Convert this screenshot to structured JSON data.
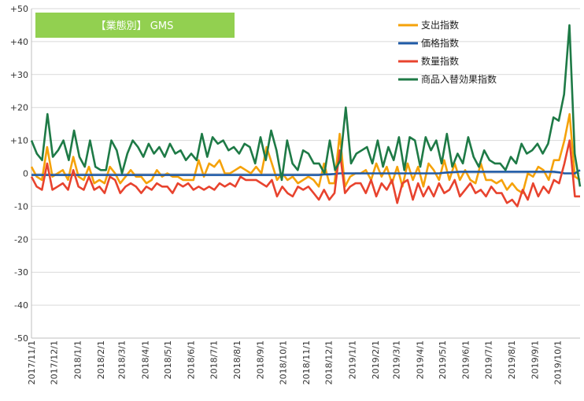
{
  "chart_data": {
    "type": "line",
    "title": "【業態別】 GMS",
    "xlabel": "",
    "ylabel": "",
    "ylim": [
      -50,
      50
    ],
    "yticks": [
      50,
      40,
      30,
      20,
      10,
      0,
      -10,
      -20,
      -30,
      -40,
      -50
    ],
    "ytick_labels": [
      "+50",
      "+40",
      "+30",
      "+20",
      "+10",
      "0",
      "-10",
      "-20",
      "-30",
      "-40",
      "-50"
    ],
    "grid": true,
    "legend_position": "top-right",
    "title_box_color": "#92d050",
    "x_start": "2017/11/1",
    "x_end": "2019/10/31",
    "x_tick_labels": [
      "2017/11/1",
      "2017/12/1",
      "2018/1/1",
      "2018/2/1",
      "2018/3/1",
      "2018/4/1",
      "2018/5/1",
      "2018/6/1",
      "2018/7/1",
      "2018/8/1",
      "2018/9/1",
      "2018/10/1",
      "2018/11/1",
      "2018/12/1",
      "2019/1/1",
      "2019/2/1",
      "2019/3/1",
      "2019/4/1",
      "2019/5/1",
      "2019/6/1",
      "2019/7/1",
      "2019/8/1",
      "2019/9/1",
      "2019/10/1"
    ],
    "series": [
      {
        "name": "支出指数",
        "color": "#f5a20a",
        "values": [
          2,
          -1,
          -2,
          8,
          -1,
          0,
          1,
          -2,
          5,
          -1,
          -2,
          2,
          -3,
          -2,
          -3,
          2,
          0,
          -3,
          -1,
          1,
          -1,
          -1,
          -3,
          -2,
          1,
          -1,
          0,
          -1,
          -1,
          -2,
          -2,
          -2,
          4,
          -1,
          3,
          2,
          4,
          0,
          0,
          1,
          2,
          1,
          0,
          2,
          0,
          8,
          3,
          -2,
          0,
          -2,
          -1,
          -3,
          -2,
          -1,
          -2,
          -4,
          3,
          -3,
          -3,
          12,
          -4,
          -1,
          0,
          0,
          1,
          -2,
          3,
          -1,
          2,
          -3,
          2,
          -4,
          3,
          -2,
          2,
          -4,
          3,
          1,
          -2,
          4,
          -2,
          3,
          -2,
          1,
          -2,
          -3,
          3,
          -2,
          -2,
          -3,
          -2,
          -5,
          -3,
          -5,
          -6,
          0,
          -1,
          2,
          1,
          -2,
          4,
          4,
          10,
          18,
          -1,
          -2
        ]
      },
      {
        "name": "価格指数",
        "color": "#1f5aa6",
        "values": [
          -0.5,
          -0.5,
          -0.5,
          -0.5,
          -0.5,
          -0.5,
          -0.5,
          -0.5,
          -0.5,
          -0.5,
          -0.5,
          -0.5,
          -0.5,
          -0.5,
          -0.5,
          -0.5,
          -0.5,
          -0.5,
          -0.5,
          -0.5,
          -0.5,
          -0.5,
          -0.5,
          -0.5,
          -0.5,
          -0.5,
          -0.5,
          -0.5,
          -0.5,
          -0.5,
          -0.5,
          -0.5,
          -0.5,
          -0.5,
          -0.5,
          -0.5,
          -0.5,
          -0.5,
          -0.5,
          -0.5,
          -0.5,
          -0.5,
          -0.5,
          -0.5,
          -0.5,
          -0.5,
          -0.5,
          -0.5,
          -0.5,
          -0.5,
          -0.5,
          -0.5,
          -0.5,
          -0.5,
          -0.5,
          -0.5,
          -0.3,
          -0.3,
          -0.2,
          0,
          0,
          0,
          0,
          0,
          0,
          0,
          0,
          0,
          0,
          0,
          0,
          0,
          0,
          0,
          0,
          0,
          0,
          0,
          0,
          0.2,
          0.3,
          0.4,
          0.5,
          0.5,
          0.5,
          0.5,
          0.5,
          0.5,
          0.5,
          0.5,
          0.5,
          0.5,
          0.5,
          0.5,
          0.5,
          0.5,
          0.5,
          0.5,
          0.5,
          0.5,
          0.5,
          0.3,
          0,
          0,
          0,
          1
        ]
      },
      {
        "name": "数量指数",
        "color": "#e8432e",
        "values": [
          -1,
          -4,
          -5,
          3,
          -5,
          -4,
          -3,
          -5,
          1,
          -4,
          -5,
          -1,
          -5,
          -4,
          -6,
          -1,
          -2,
          -6,
          -4,
          -3,
          -4,
          -6,
          -4,
          -5,
          -3,
          -4,
          -4,
          -6,
          -3,
          -4,
          -3,
          -5,
          -4,
          -5,
          -4,
          -5,
          -3,
          -4,
          -3,
          -4,
          -1,
          -2,
          -2,
          -2,
          -3,
          -4,
          -2,
          -7,
          -4,
          -6,
          -7,
          -4,
          -5,
          -4,
          -6,
          -8,
          -5,
          -8,
          -6,
          7,
          -6,
          -4,
          -3,
          -3,
          -6,
          -2,
          -7,
          -3,
          -5,
          -2,
          -9,
          -3,
          -2,
          -8,
          -3,
          -7,
          -4,
          -7,
          -3,
          -6,
          -5,
          -2,
          -7,
          -5,
          -3,
          -6,
          -5,
          -7,
          -4,
          -6,
          -6,
          -9,
          -8,
          -10,
          -5,
          -8,
          -3,
          -7,
          -4,
          -6,
          -2,
          -3,
          3,
          10,
          -7,
          -7
        ]
      },
      {
        "name": "商品入替効果指数",
        "color": "#1e7a46",
        "values": [
          10,
          6,
          4,
          18,
          5,
          7,
          10,
          4,
          13,
          5,
          2,
          10,
          2,
          1,
          1,
          10,
          7,
          0,
          6,
          10,
          8,
          5,
          9,
          6,
          8,
          5,
          9,
          6,
          7,
          4,
          6,
          4,
          12,
          5,
          11,
          9,
          10,
          7,
          8,
          6,
          9,
          8,
          3,
          11,
          4,
          13,
          7,
          -2,
          10,
          3,
          1,
          7,
          6,
          3,
          3,
          0,
          10,
          1,
          4,
          20,
          3,
          6,
          7,
          8,
          3,
          10,
          2,
          8,
          4,
          11,
          1,
          11,
          10,
          2,
          11,
          7,
          10,
          3,
          12,
          2,
          6,
          3,
          11,
          5,
          2,
          7,
          4,
          3,
          3,
          1,
          5,
          3,
          9,
          6,
          7,
          9,
          6,
          9,
          17,
          16,
          24,
          45,
          6,
          -4
        ]
      }
    ]
  }
}
